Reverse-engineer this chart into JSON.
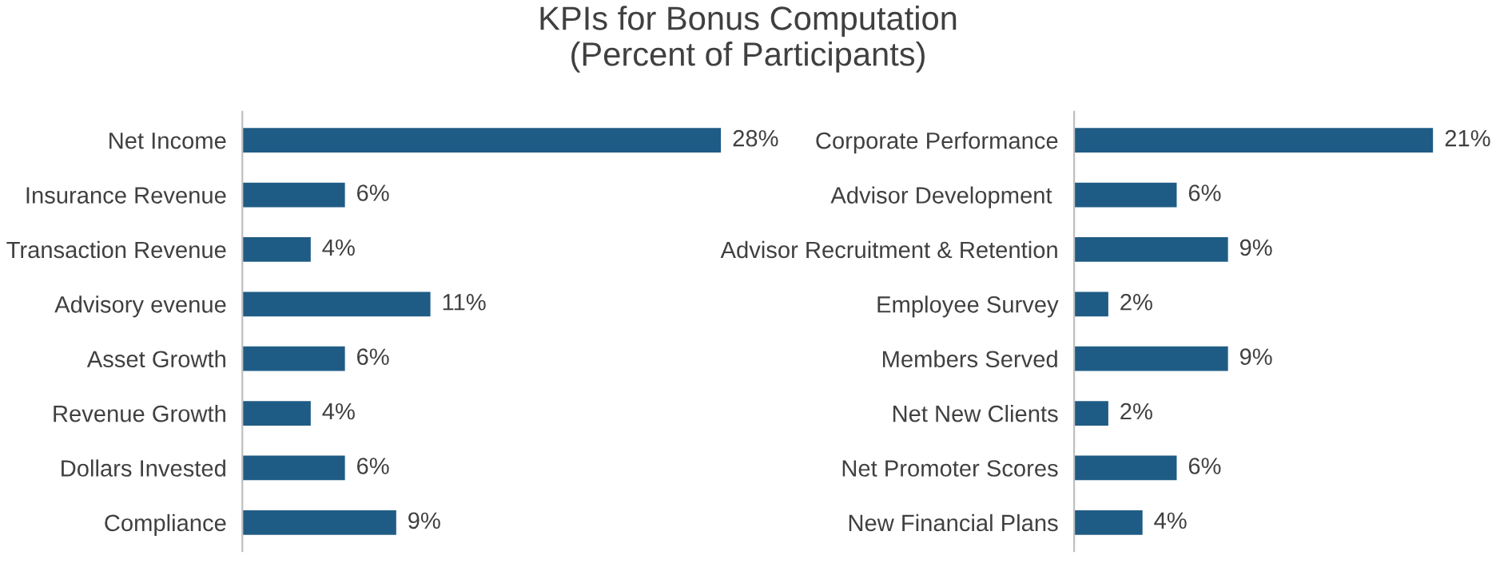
{
  "chart_data": [
    {
      "type": "bar",
      "orientation": "horizontal",
      "title": "KPIs for Bonus Computation\n(Percent of Participants)",
      "color": "#1f5c85",
      "categories": [
        "Net Income",
        "Insurance Revenue",
        "Transaction Revenue",
        "Advisory evenue",
        "Asset Growth",
        "Revenue Growth",
        "Dollars Invested",
        "Compliance"
      ],
      "values": [
        28,
        6,
        4,
        11,
        6,
        4,
        6,
        9
      ],
      "value_labels": [
        "28%",
        "6%",
        "4%",
        "11%",
        "6%",
        "4%",
        "6%",
        "9%"
      ],
      "tick_labels": "y",
      "grid": false,
      "legend": false
    },
    {
      "type": "bar",
      "orientation": "horizontal",
      "color": "#1f5c85",
      "categories": [
        "Corporate Performance",
        "Advisor Development ",
        "Advisor Recruitment & Retention",
        "Employee Survey",
        "Members Served",
        "Net New Clients",
        "Net Promoter Scores",
        "New Financial Plans"
      ],
      "values": [
        21,
        6,
        9,
        2,
        9,
        2,
        6,
        4
      ],
      "value_labels": [
        "21%",
        "6%",
        "9%",
        "2%",
        "9%",
        "2%",
        "6%",
        "4%"
      ],
      "tick_labels": "y",
      "grid": false,
      "legend": false
    }
  ]
}
